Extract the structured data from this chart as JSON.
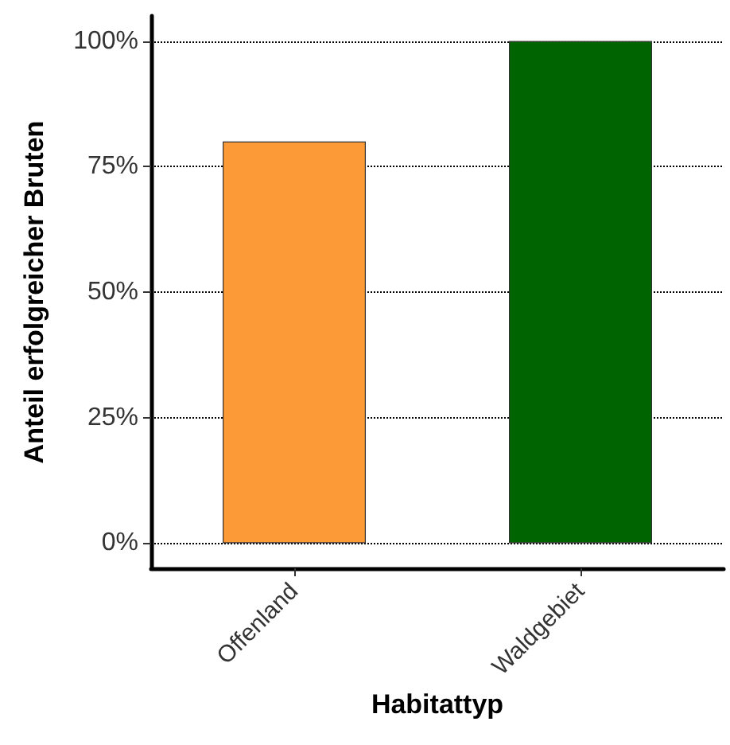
{
  "chart_data": {
    "type": "bar",
    "xlabel": "Habitattyp",
    "ylabel": "Anteil erfolgreicher Bruten",
    "categories": [
      "Offenland",
      "Waldgebiet"
    ],
    "values": [
      80,
      100
    ],
    "colors": [
      "#fd9a38",
      "#006400"
    ],
    "ylim": [
      -5,
      105
    ],
    "yticks": [
      {
        "value": 0,
        "label": "0%"
      },
      {
        "value": 25,
        "label": "25%"
      },
      {
        "value": 50,
        "label": "50%"
      },
      {
        "value": 75,
        "label": "75%"
      },
      {
        "value": 100,
        "label": "100%"
      }
    ],
    "grid": "y"
  }
}
